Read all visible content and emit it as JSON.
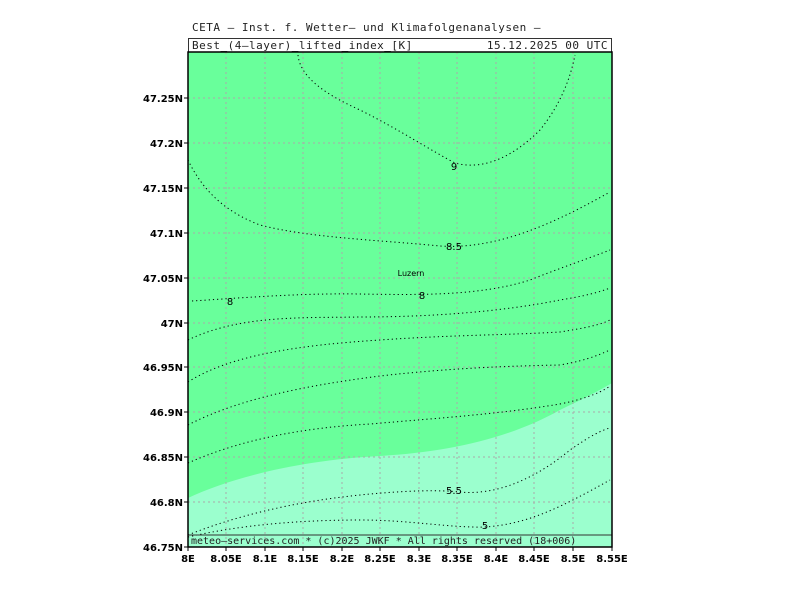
{
  "header": {
    "institution": "CETA – Inst. f. Wetter– und Klimafolgenanalysen –",
    "variable": "Best_(4–layer)_lifted_index_[K]",
    "valid_time": "15.12.2025 00 UTC"
  },
  "footer": {
    "credit": "meteo–services.com * (c)2025 JWKF * All rights reserved (18+006)"
  },
  "map": {
    "place_label": "Luzern",
    "fill_colors": {
      "upper": "#69ff9b",
      "lower": "#9bffce",
      "grid": "#aaaaaa",
      "contour": "#000000"
    },
    "lat_ticks": [
      "47.25N",
      "47.2N",
      "47.15N",
      "47.1N",
      "47.05N",
      "47N",
      "46.95N",
      "46.9N",
      "46.85N",
      "46.8N",
      "46.75N"
    ],
    "lon_ticks": [
      "8E",
      "8.05E",
      "8.1E",
      "8.15E",
      "8.2E",
      "8.25E",
      "8.3E",
      "8.35E",
      "8.4E",
      "8.45E",
      "8.5E",
      "8.55E"
    ],
    "contour_labels": [
      "9",
      "8.5",
      "8",
      "8",
      "5.5",
      "5"
    ],
    "lat_range": [
      46.75,
      47.3
    ],
    "lon_range": [
      8.0,
      8.55
    ]
  }
}
